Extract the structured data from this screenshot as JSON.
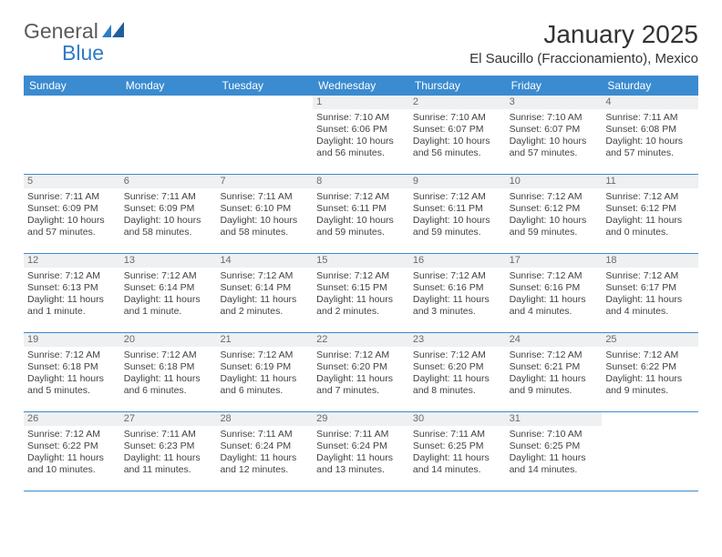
{
  "logo": {
    "part1": "General",
    "part2": "Blue"
  },
  "title": "January 2025",
  "location": "El Saucillo (Fraccionamiento), Mexico",
  "weekdays": [
    "Sunday",
    "Monday",
    "Tuesday",
    "Wednesday",
    "Thursday",
    "Friday",
    "Saturday"
  ],
  "colors": {
    "header_bg": "#3b8bd0",
    "header_text": "#ffffff",
    "daynum_bg": "#eef0f1",
    "daynum_text": "#6a6a6a",
    "body_text": "#424242",
    "rule": "#3b8bd0",
    "logo_gray": "#5a5a5a",
    "logo_blue": "#2f7bc4"
  },
  "layout": {
    "blanks_before": 3,
    "days_in_month": 31
  },
  "days": {
    "1": {
      "sunrise": "7:10 AM",
      "sunset": "6:06 PM",
      "daylight": "10 hours and 56 minutes."
    },
    "2": {
      "sunrise": "7:10 AM",
      "sunset": "6:07 PM",
      "daylight": "10 hours and 56 minutes."
    },
    "3": {
      "sunrise": "7:10 AM",
      "sunset": "6:07 PM",
      "daylight": "10 hours and 57 minutes."
    },
    "4": {
      "sunrise": "7:11 AM",
      "sunset": "6:08 PM",
      "daylight": "10 hours and 57 minutes."
    },
    "5": {
      "sunrise": "7:11 AM",
      "sunset": "6:09 PM",
      "daylight": "10 hours and 57 minutes."
    },
    "6": {
      "sunrise": "7:11 AM",
      "sunset": "6:09 PM",
      "daylight": "10 hours and 58 minutes."
    },
    "7": {
      "sunrise": "7:11 AM",
      "sunset": "6:10 PM",
      "daylight": "10 hours and 58 minutes."
    },
    "8": {
      "sunrise": "7:12 AM",
      "sunset": "6:11 PM",
      "daylight": "10 hours and 59 minutes."
    },
    "9": {
      "sunrise": "7:12 AM",
      "sunset": "6:11 PM",
      "daylight": "10 hours and 59 minutes."
    },
    "10": {
      "sunrise": "7:12 AM",
      "sunset": "6:12 PM",
      "daylight": "10 hours and 59 minutes."
    },
    "11": {
      "sunrise": "7:12 AM",
      "sunset": "6:12 PM",
      "daylight": "11 hours and 0 minutes."
    },
    "12": {
      "sunrise": "7:12 AM",
      "sunset": "6:13 PM",
      "daylight": "11 hours and 1 minute."
    },
    "13": {
      "sunrise": "7:12 AM",
      "sunset": "6:14 PM",
      "daylight": "11 hours and 1 minute."
    },
    "14": {
      "sunrise": "7:12 AM",
      "sunset": "6:14 PM",
      "daylight": "11 hours and 2 minutes."
    },
    "15": {
      "sunrise": "7:12 AM",
      "sunset": "6:15 PM",
      "daylight": "11 hours and 2 minutes."
    },
    "16": {
      "sunrise": "7:12 AM",
      "sunset": "6:16 PM",
      "daylight": "11 hours and 3 minutes."
    },
    "17": {
      "sunrise": "7:12 AM",
      "sunset": "6:16 PM",
      "daylight": "11 hours and 4 minutes."
    },
    "18": {
      "sunrise": "7:12 AM",
      "sunset": "6:17 PM",
      "daylight": "11 hours and 4 minutes."
    },
    "19": {
      "sunrise": "7:12 AM",
      "sunset": "6:18 PM",
      "daylight": "11 hours and 5 minutes."
    },
    "20": {
      "sunrise": "7:12 AM",
      "sunset": "6:18 PM",
      "daylight": "11 hours and 6 minutes."
    },
    "21": {
      "sunrise": "7:12 AM",
      "sunset": "6:19 PM",
      "daylight": "11 hours and 6 minutes."
    },
    "22": {
      "sunrise": "7:12 AM",
      "sunset": "6:20 PM",
      "daylight": "11 hours and 7 minutes."
    },
    "23": {
      "sunrise": "7:12 AM",
      "sunset": "6:20 PM",
      "daylight": "11 hours and 8 minutes."
    },
    "24": {
      "sunrise": "7:12 AM",
      "sunset": "6:21 PM",
      "daylight": "11 hours and 9 minutes."
    },
    "25": {
      "sunrise": "7:12 AM",
      "sunset": "6:22 PM",
      "daylight": "11 hours and 9 minutes."
    },
    "26": {
      "sunrise": "7:12 AM",
      "sunset": "6:22 PM",
      "daylight": "11 hours and 10 minutes."
    },
    "27": {
      "sunrise": "7:11 AM",
      "sunset": "6:23 PM",
      "daylight": "11 hours and 11 minutes."
    },
    "28": {
      "sunrise": "7:11 AM",
      "sunset": "6:24 PM",
      "daylight": "11 hours and 12 minutes."
    },
    "29": {
      "sunrise": "7:11 AM",
      "sunset": "6:24 PM",
      "daylight": "11 hours and 13 minutes."
    },
    "30": {
      "sunrise": "7:11 AM",
      "sunset": "6:25 PM",
      "daylight": "11 hours and 14 minutes."
    },
    "31": {
      "sunrise": "7:10 AM",
      "sunset": "6:25 PM",
      "daylight": "11 hours and 14 minutes."
    }
  },
  "labels": {
    "sunrise": "Sunrise:",
    "sunset": "Sunset:",
    "daylight": "Daylight:"
  }
}
